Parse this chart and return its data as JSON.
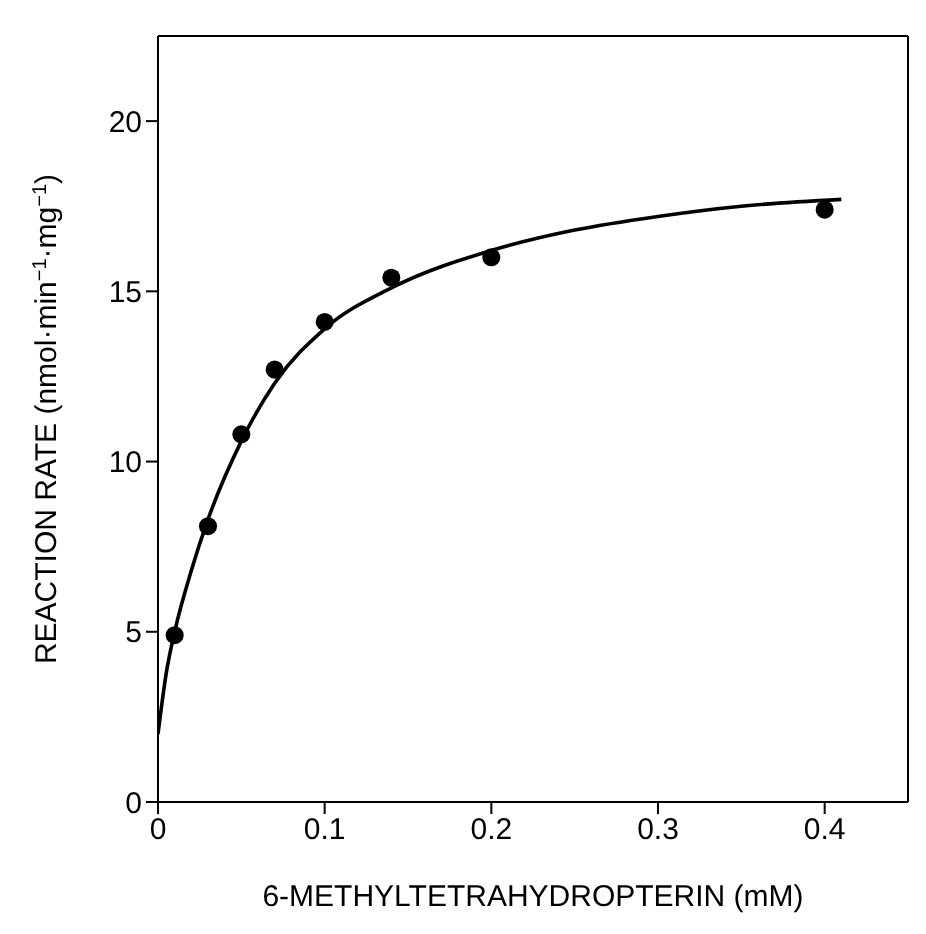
{
  "chart_data": {
    "type": "scatter",
    "xlabel": "6-METHYLTETRAHYDROPTERIN (mM)",
    "ylabel": "REACTION RATE (nmol·min$^{−1}$·mg$^{−1}$)",
    "xlim": [
      0,
      0.45
    ],
    "xticks": [
      0,
      0.1,
      0.2,
      0.3,
      0.4
    ],
    "ylim": [
      0,
      22.5
    ],
    "yticks": [
      0,
      5,
      10,
      15,
      20
    ],
    "legend": false,
    "series": [
      {
        "color": "#000000",
        "marker": "circle",
        "x": [
          0.01,
          0.03,
          0.05,
          0.07,
          0.1,
          0.14,
          0.2,
          0.4
        ],
        "values": [
          4.9,
          8.1,
          10.8,
          12.7,
          14.1,
          15.4,
          16.0,
          17.4
        ]
      },
      {
        "type": "line",
        "color": "#000000",
        "marker": "none",
        "line_style": "solid",
        "x": [
          0,
          0.005,
          0.01,
          0.02,
          0.03,
          0.05,
          0.07,
          0.1,
          0.14,
          0.2,
          0.25,
          0.3,
          0.35,
          0.41
        ],
        "values": [
          2.0,
          3.8,
          5.0,
          6.8,
          8.3,
          10.6,
          12.3,
          13.9,
          15.1,
          16.2,
          16.8,
          17.2,
          17.5,
          17.7
        ]
      }
    ]
  }
}
